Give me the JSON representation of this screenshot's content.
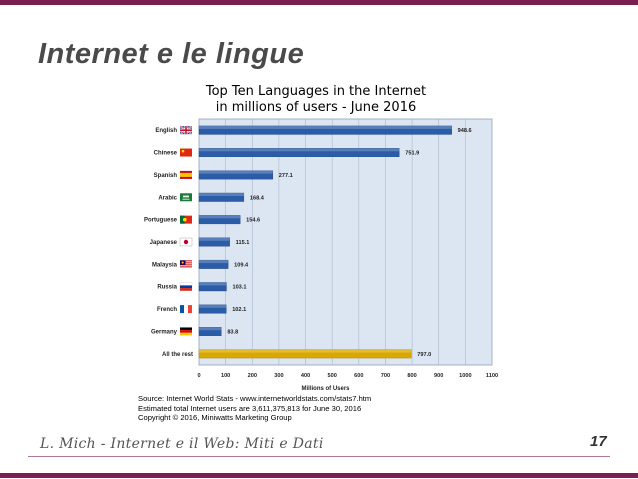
{
  "slide": {
    "title": "Internet e le lingue",
    "footer": "L. Mich  - Internet e il Web: Miti e Dati",
    "page_number": "17"
  },
  "chart_data": {
    "type": "bar",
    "orientation": "horizontal",
    "title": "Top Ten Languages in the Internet",
    "subtitle": "in millions of users - June 2016",
    "xlabel": "Millions of Users",
    "ylabel": "",
    "xlim": [
      0,
      1100
    ],
    "xticks": [
      0,
      100,
      200,
      300,
      400,
      500,
      600,
      700,
      800,
      900,
      1000,
      1100
    ],
    "grid": true,
    "categories": [
      "English",
      "Chinese",
      "Spanish",
      "Arabic",
      "Portuguese",
      "Japanese",
      "Malaysia",
      "Russia",
      "French",
      "Germany",
      "All the rest"
    ],
    "values": [
      948.6,
      751.9,
      277.1,
      168.4,
      154.6,
      115.1,
      109.4,
      103.1,
      102.1,
      83.8,
      797.0
    ],
    "value_labels": [
      "948.6",
      "751.9",
      "277.1",
      "168.4",
      "154.6",
      "115.1",
      "109.4",
      "103.1",
      "102.1",
      "83.8",
      "797.0"
    ],
    "flag_icons": [
      "uk-flag-icon",
      "china-flag-icon",
      "spain-flag-icon",
      "saudi-arabia-flag-icon",
      "portugal-flag-icon",
      "japan-flag-icon",
      "malaysia-flag-icon",
      "russia-flag-icon",
      "france-flag-icon",
      "germany-flag-icon",
      ""
    ],
    "colors": {
      "bar": "#2b5ca8",
      "bar_highlight": "#d9a800",
      "plot_bg": "#dce6f2",
      "grid": "#a9b7cc"
    },
    "source_lines": [
      "Source: Internet World Stats - www.internetworldstats.com/stats7.htm",
      "Estimated total Internet users are 3,611,375,813 for June 30, 2016",
      "Copyright © 2016, Miniwatts Marketing Group"
    ]
  }
}
